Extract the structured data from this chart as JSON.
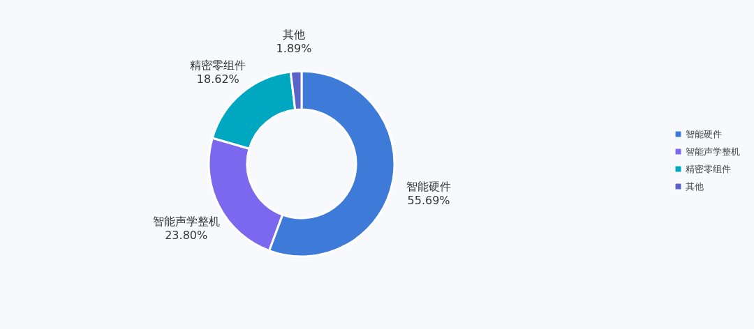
{
  "chart_data": {
    "type": "donut",
    "categories": [
      "智能硬件",
      "智能声学整机",
      "精密零组件",
      "其他"
    ],
    "values": [
      55.69,
      23.8,
      18.62,
      1.89
    ],
    "value_labels": [
      "55.69%",
      "23.80%",
      "18.62%",
      "1.89%"
    ],
    "colors": [
      "#3e7bd8",
      "#7b68ee",
      "#00a7c1",
      "#5a64c8"
    ],
    "legend": "right"
  }
}
